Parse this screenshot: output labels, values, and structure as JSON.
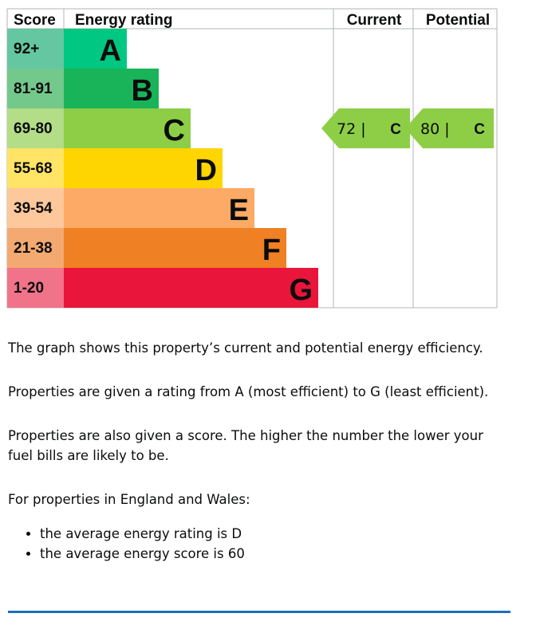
{
  "chart_data": {
    "type": "bar",
    "headers": {
      "score": "Score",
      "rating": "Energy rating",
      "current": "Current",
      "potential": "Potential"
    },
    "bands": [
      {
        "letter": "A",
        "range": "92+",
        "color": "#00c781",
        "score_color": "#64c7a1"
      },
      {
        "letter": "B",
        "range": "81-91",
        "color": "#19b459",
        "score_color": "#73c88b"
      },
      {
        "letter": "C",
        "range": "69-80",
        "color": "#8dce46",
        "score_color": "#b3dd86"
      },
      {
        "letter": "D",
        "range": "55-68",
        "color": "#ffd500",
        "score_color": "#ffe466"
      },
      {
        "letter": "E",
        "range": "39-54",
        "color": "#fcaa65",
        "score_color": "#fdc89c"
      },
      {
        "letter": "F",
        "range": "21-38",
        "color": "#ef8023",
        "score_color": "#f4a970"
      },
      {
        "letter": "G",
        "range": "1-20",
        "color": "#e9153b",
        "score_color": "#f17389"
      }
    ],
    "current": {
      "score": 72,
      "band": "C",
      "label": "72 |",
      "color": "#8dce46"
    },
    "potential": {
      "score": 80,
      "band": "C",
      "label": "80 |",
      "color": "#8dce46"
    }
  },
  "text": {
    "p1": "The graph shows this property’s current and potential energy efficiency.",
    "p2": "Properties are given a rating from A (most efficient) to G (least efficient).",
    "p3": "Properties are also given a score. The higher the number the lower your fuel bills are likely to be.",
    "p4": "For properties in England and Wales:",
    "bullets": [
      "the average energy rating is D",
      "the average energy score is 60"
    ]
  }
}
